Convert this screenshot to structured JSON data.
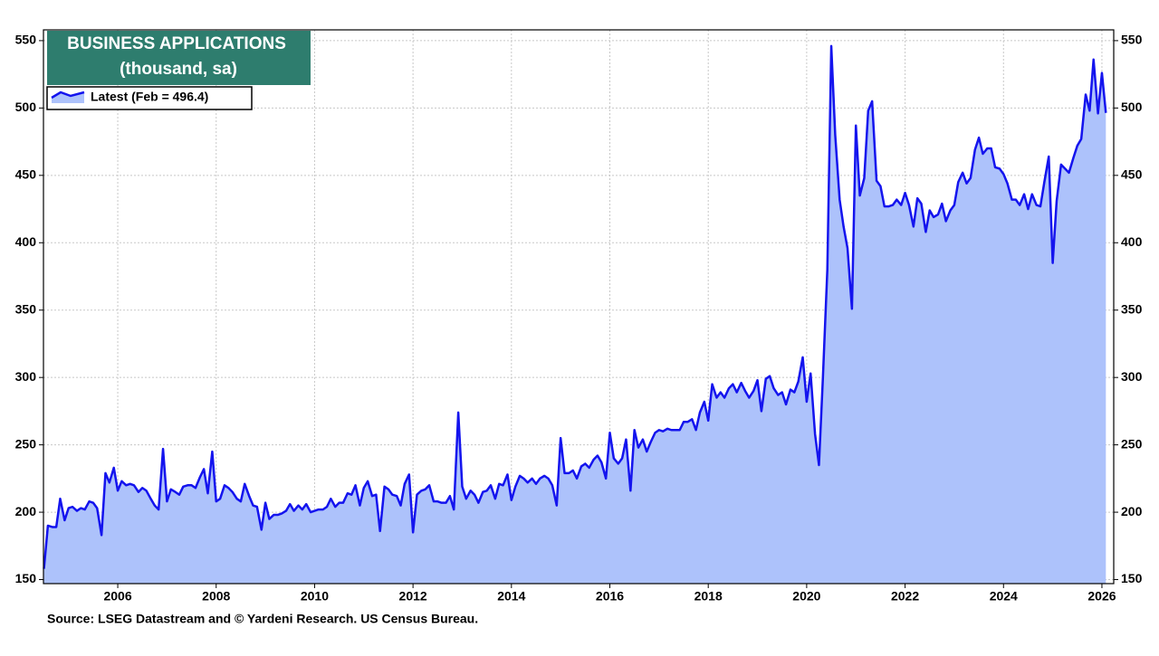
{
  "chart_data": {
    "type": "area",
    "title": "BUSINESS APPLICATIONS",
    "subtitle": "(thousand, sa)",
    "source": "Source: LSEG Datastream and © Yardeni Research. US Census Bureau.",
    "series": [
      {
        "name": "Latest (Feb = 496.4)",
        "color": "#1414ee",
        "fill": "#adc2fb",
        "x": [
          2004.5,
          2004.58,
          2004.67,
          2004.75,
          2004.83,
          2004.92,
          2005,
          2005.08,
          2005.17,
          2005.25,
          2005.33,
          2005.42,
          2005.5,
          2005.58,
          2005.67,
          2005.75,
          2005.83,
          2005.92,
          2006,
          2006.08,
          2006.17,
          2006.25,
          2006.33,
          2006.42,
          2006.5,
          2006.58,
          2006.67,
          2006.75,
          2006.83,
          2006.92,
          2007,
          2007.08,
          2007.17,
          2007.25,
          2007.33,
          2007.42,
          2007.5,
          2007.58,
          2007.67,
          2007.75,
          2007.83,
          2007.92,
          2008,
          2008.08,
          2008.17,
          2008.25,
          2008.33,
          2008.42,
          2008.5,
          2008.58,
          2008.67,
          2008.75,
          2008.83,
          2008.92,
          2009,
          2009.08,
          2009.17,
          2009.25,
          2009.33,
          2009.42,
          2009.5,
          2009.58,
          2009.67,
          2009.75,
          2009.83,
          2009.92,
          2010,
          2010.08,
          2010.17,
          2010.25,
          2010.33,
          2010.42,
          2010.5,
          2010.58,
          2010.67,
          2010.75,
          2010.83,
          2010.92,
          2011,
          2011.08,
          2011.17,
          2011.25,
          2011.33,
          2011.42,
          2011.5,
          2011.58,
          2011.67,
          2011.75,
          2011.83,
          2011.92,
          2012,
          2012.08,
          2012.17,
          2012.25,
          2012.33,
          2012.42,
          2012.5,
          2012.58,
          2012.67,
          2012.75,
          2012.83,
          2012.92,
          2013,
          2013.08,
          2013.17,
          2013.25,
          2013.33,
          2013.42,
          2013.5,
          2013.58,
          2013.67,
          2013.75,
          2013.83,
          2013.92,
          2014,
          2014.08,
          2014.17,
          2014.25,
          2014.33,
          2014.42,
          2014.5,
          2014.58,
          2014.67,
          2014.75,
          2014.83,
          2014.92,
          2015,
          2015.08,
          2015.17,
          2015.25,
          2015.33,
          2015.42,
          2015.5,
          2015.58,
          2015.67,
          2015.75,
          2015.83,
          2015.92,
          2016,
          2016.08,
          2016.17,
          2016.25,
          2016.33,
          2016.42,
          2016.5,
          2016.58,
          2016.67,
          2016.75,
          2016.83,
          2016.92,
          2017,
          2017.08,
          2017.17,
          2017.25,
          2017.33,
          2017.42,
          2017.5,
          2017.58,
          2017.67,
          2017.75,
          2017.83,
          2017.92,
          2018,
          2018.08,
          2018.17,
          2018.25,
          2018.33,
          2018.42,
          2018.5,
          2018.58,
          2018.67,
          2018.75,
          2018.83,
          2018.92,
          2019,
          2019.08,
          2019.17,
          2019.25,
          2019.33,
          2019.42,
          2019.5,
          2019.58,
          2019.67,
          2019.75,
          2019.83,
          2019.92,
          2020,
          2020.08,
          2020.17,
          2020.25,
          2020.33,
          2020.42,
          2020.5,
          2020.58,
          2020.67,
          2020.75,
          2020.83,
          2020.92,
          2021,
          2021.08,
          2021.17,
          2021.25,
          2021.33,
          2021.42,
          2021.5,
          2021.58,
          2021.67,
          2021.75,
          2021.83,
          2021.92,
          2022,
          2022.08,
          2022.17,
          2022.25,
          2022.33,
          2022.42,
          2022.5,
          2022.58,
          2022.67,
          2022.75,
          2022.83,
          2022.92,
          2023,
          2023.08,
          2023.17,
          2023.25,
          2023.33,
          2023.42,
          2023.5,
          2023.58,
          2023.67,
          2023.75,
          2023.83,
          2023.92,
          2024,
          2024.08,
          2024.17,
          2024.25,
          2024.33,
          2024.42,
          2024.5,
          2024.58,
          2024.67,
          2024.75,
          2024.83,
          2024.92,
          2025,
          2025.08,
          2025.17,
          2025.25,
          2025.33,
          2025.42,
          2025.5,
          2025.58,
          2025.67,
          2025.75,
          2025.83,
          2025.92,
          2026,
          2026.08
        ],
        "values": [
          158,
          190,
          189,
          189,
          210,
          194,
          203,
          204,
          201,
          203,
          202,
          208,
          207,
          203,
          183,
          229,
          222,
          233,
          216,
          223,
          220,
          221,
          220,
          215,
          218,
          216,
          210,
          205,
          202,
          247,
          208,
          217,
          215,
          213,
          219,
          220,
          220,
          218,
          226,
          232,
          214,
          245,
          208,
          210,
          220,
          218,
          215,
          210,
          208,
          221,
          212,
          205,
          204,
          187,
          207,
          195,
          198,
          198,
          199,
          201,
          206,
          201,
          205,
          202,
          206,
          200,
          201,
          202,
          202,
          204,
          210,
          204,
          207,
          207,
          214,
          213,
          220,
          205,
          218,
          223,
          212,
          213,
          186,
          219,
          217,
          213,
          212,
          205,
          221,
          228,
          185,
          213,
          216,
          217,
          220,
          208,
          208,
          207,
          207,
          212,
          202,
          274,
          219,
          210,
          216,
          213,
          207,
          215,
          216,
          220,
          210,
          221,
          220,
          228,
          209,
          219,
          227,
          225,
          222,
          225,
          221,
          225,
          227,
          225,
          220,
          205,
          255,
          229,
          229,
          231,
          225,
          234,
          236,
          233,
          239,
          242,
          237,
          225,
          259,
          240,
          236,
          240,
          254,
          216,
          261,
          248,
          254,
          245,
          252,
          259,
          261,
          260,
          262,
          261,
          261,
          261,
          267,
          267,
          269,
          261,
          274,
          282,
          268,
          295,
          285,
          289,
          285,
          292,
          295,
          289,
          296,
          290,
          285,
          290,
          298,
          275,
          299,
          301,
          292,
          287,
          289,
          280,
          291,
          289,
          297,
          315,
          282,
          303,
          258,
          235,
          300,
          380,
          546,
          480,
          432,
          412,
          396,
          351,
          487,
          435,
          448,
          498,
          505,
          446,
          442,
          427,
          427,
          428,
          432,
          428,
          437,
          428,
          412,
          433,
          429,
          408,
          424,
          419,
          421,
          429,
          416,
          424,
          428,
          445,
          452,
          444,
          448,
          469,
          478,
          466,
          470,
          470,
          456,
          455,
          451,
          444,
          432,
          432,
          428,
          436,
          425,
          436,
          428,
          427,
          445,
          464,
          385,
          431,
          458,
          455,
          452,
          463,
          472,
          477,
          510,
          498,
          536,
          496,
          526,
          496.4
        ]
      }
    ],
    "xlim": [
      2004.49,
      2026.24
    ],
    "xticks": [
      2006,
      2008,
      2010,
      2012,
      2014,
      2016,
      2018,
      2020,
      2022,
      2024,
      2026
    ],
    "ylim": [
      147,
      558
    ],
    "yticks": [
      150,
      200,
      250,
      300,
      350,
      400,
      450,
      500,
      550
    ],
    "y2lim": [
      147,
      558
    ],
    "y2ticks": [
      150,
      200,
      250,
      300,
      350,
      400,
      450,
      500,
      550
    ],
    "grid": true,
    "legend": "upper left"
  }
}
